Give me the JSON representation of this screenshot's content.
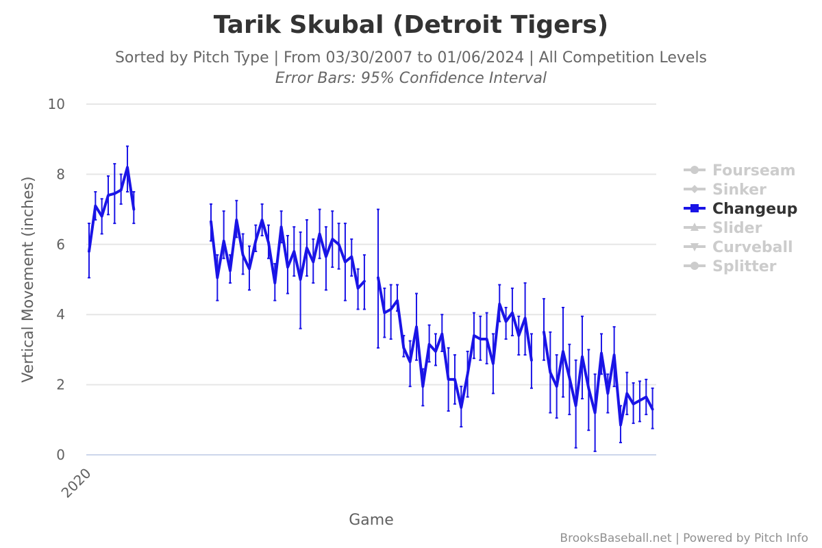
{
  "chart_data": {
    "type": "line",
    "title": "Tarik Skubal (Detroit Tigers)",
    "subtitle": "Sorted by Pitch Type | From 03/30/2007 to 01/06/2024 | All Competition Levels",
    "subtitle2": "Error Bars: 95% Confidence Interval",
    "xlabel": "Game",
    "ylabel": "Vertical Movement (inches)",
    "x_tick_labels": [
      "2020"
    ],
    "y_ticks": [
      0,
      2,
      4,
      6,
      8,
      10
    ],
    "ylim": [
      0,
      10
    ],
    "grid": true,
    "legend_position": "right",
    "credits": "BrooksBaseball.net | Powered by Pitch Info",
    "legend": [
      {
        "name": "Fourseam",
        "active": false,
        "marker": "circle"
      },
      {
        "name": "Sinker",
        "active": false,
        "marker": "diamond"
      },
      {
        "name": "Changeup",
        "active": true,
        "marker": "square"
      },
      {
        "name": "Slider",
        "active": false,
        "marker": "triangle"
      },
      {
        "name": "Curveball",
        "active": false,
        "marker": "triangle-down"
      },
      {
        "name": "Splitter",
        "active": false,
        "marker": "circle"
      }
    ],
    "series": [
      {
        "name": "Changeup",
        "color": "#1a14e6",
        "segments": [
          {
            "y": [
              5.8,
              7.1,
              6.8,
              7.4,
              7.45,
              7.55,
              8.2,
              7.0
            ],
            "lo": [
              5.05,
              6.7,
              6.3,
              6.85,
              6.6,
              7.15,
              7.5,
              6.6
            ],
            "hi": [
              6.6,
              7.5,
              7.3,
              7.95,
              8.3,
              8.0,
              8.8,
              7.5
            ]
          },
          {
            "y": [
              6.65,
              5.05,
              6.1,
              5.25,
              6.7,
              5.7,
              5.3,
              6.1,
              6.7,
              6.05,
              4.9,
              6.5,
              5.35,
              5.8,
              5.0,
              5.9,
              5.5,
              6.3,
              5.65,
              6.15,
              6.0,
              5.5,
              5.65,
              4.75,
              4.95
            ],
            "lo": [
              6.1,
              4.4,
              5.6,
              4.9,
              6.2,
              5.15,
              4.7,
              5.8,
              6.25,
              5.6,
              4.4,
              6.05,
              4.6,
              5.1,
              3.6,
              5.1,
              4.9,
              5.6,
              4.7,
              5.35,
              5.3,
              4.4,
              5.1,
              4.15,
              4.15
            ],
            "hi": [
              7.15,
              5.7,
              6.95,
              5.7,
              7.25,
              6.3,
              5.95,
              6.55,
              7.15,
              6.55,
              5.45,
              6.95,
              6.25,
              6.5,
              6.35,
              6.7,
              6.15,
              7.0,
              6.5,
              6.95,
              6.6,
              6.6,
              6.15,
              5.3,
              5.7
            ]
          },
          {
            "y": [
              5.05,
              4.05,
              4.15,
              4.4,
              3.05,
              2.65,
              3.65,
              1.95,
              3.15,
              2.95,
              3.45,
              2.15,
              2.15,
              1.35,
              2.3,
              3.4,
              3.3,
              3.3,
              2.6,
              4.3,
              3.8,
              4.05,
              3.4,
              3.9,
              2.7
            ],
            "lo": [
              3.05,
              3.35,
              3.3,
              4.1,
              2.8,
              1.95,
              2.7,
              1.4,
              2.65,
              2.55,
              2.95,
              1.25,
              1.45,
              0.8,
              1.65,
              2.75,
              2.7,
              2.6,
              1.75,
              3.8,
              3.3,
              3.4,
              2.85,
              2.85,
              1.9
            ],
            "hi": [
              7.0,
              4.75,
              4.85,
              4.85,
              3.4,
              3.25,
              4.6,
              2.45,
              3.7,
              3.45,
              4.0,
              3.05,
              2.85,
              1.95,
              2.95,
              4.05,
              3.95,
              4.05,
              3.45,
              4.85,
              4.2,
              4.75,
              3.95,
              4.9,
              3.45
            ]
          },
          {
            "y": [
              3.5,
              2.35,
              1.95,
              2.95,
              2.2,
              1.4,
              2.8,
              1.9,
              1.2,
              2.9,
              1.75,
              2.85,
              0.85,
              1.75,
              1.45,
              1.55,
              1.65,
              1.3
            ],
            "lo": [
              2.7,
              1.2,
              1.05,
              1.65,
              1.15,
              0.2,
              1.6,
              0.7,
              0.1,
              2.3,
              1.2,
              1.95,
              0.35,
              1.15,
              0.9,
              0.95,
              1.15,
              0.75
            ],
            "hi": [
              4.45,
              3.5,
              2.85,
              4.2,
              3.15,
              2.7,
              3.95,
              3.0,
              2.3,
              3.45,
              2.3,
              3.65,
              1.4,
              2.35,
              2.05,
              2.1,
              2.15,
              1.9
            ]
          }
        ]
      }
    ]
  }
}
